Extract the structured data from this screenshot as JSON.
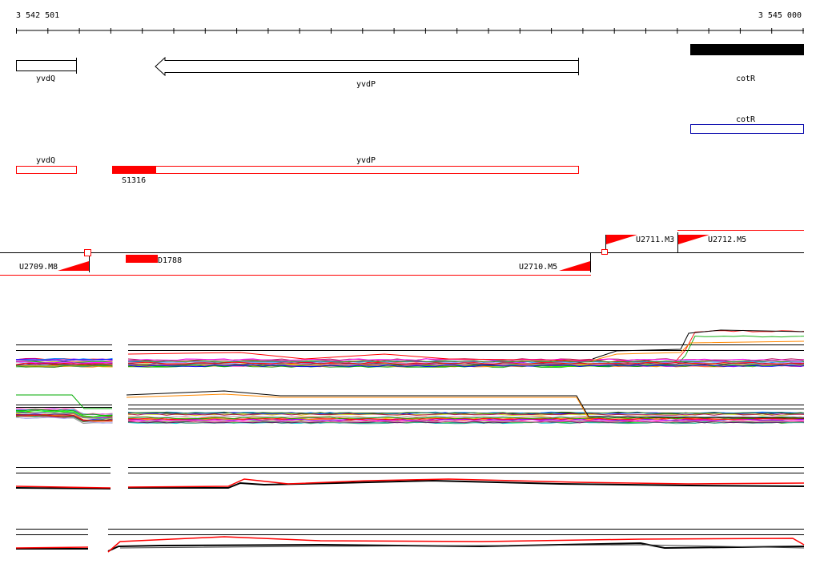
{
  "ruler": {
    "start_label": "3 542 501",
    "end_label": "3 545 000"
  },
  "genes": {
    "yvdQ": "yvdQ",
    "yvdP": "yvdP",
    "cotR": "cotR"
  },
  "annotation_track": {
    "cotR": "cotR"
  },
  "transcripts": {
    "yvdQ": "yvdQ",
    "yvdP": "yvdP",
    "segment_label": "S1316"
  },
  "features": {
    "u2709": "U2709.M8",
    "d1788": "D1788",
    "u2710": "U2710.M5",
    "u2711": "U2711.M3",
    "u2712": "U2712.M5"
  },
  "colors": {
    "accent": "#ff0000",
    "annotation_box": "#0000aa",
    "text": "#000000"
  }
}
